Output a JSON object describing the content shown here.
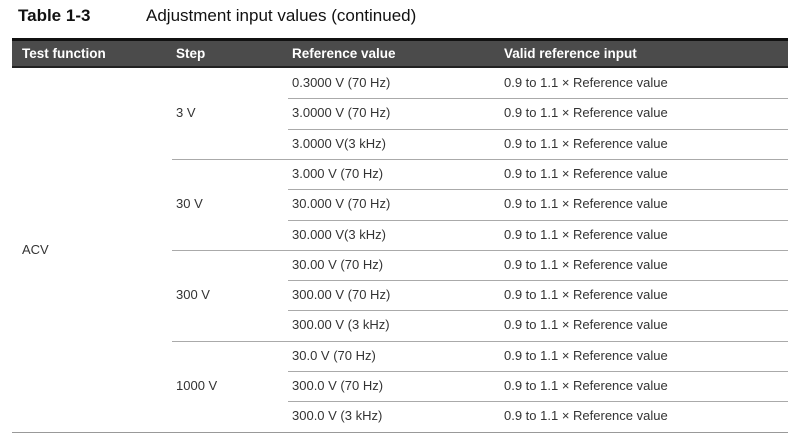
{
  "caption": {
    "number": "Table 1-3",
    "title": "Adjustment input values (continued)"
  },
  "columns": [
    "Test function",
    "Step",
    "Reference value",
    "Valid reference input"
  ],
  "function": "ACV",
  "groups": [
    {
      "step": "3 V",
      "rows": [
        {
          "ref": "0.3000 V (70 Hz)",
          "valid": "0.9 to 1.1 × Reference value"
        },
        {
          "ref": "3.0000 V (70 Hz)",
          "valid": "0.9 to 1.1 × Reference value"
        },
        {
          "ref": "3.0000 V(3 kHz)",
          "valid": "0.9 to 1.1 × Reference value"
        }
      ]
    },
    {
      "step": "30 V",
      "rows": [
        {
          "ref": "3.000 V (70 Hz)",
          "valid": "0.9 to 1.1 × Reference value"
        },
        {
          "ref": "30.000 V (70 Hz)",
          "valid": "0.9 to 1.1 × Reference value"
        },
        {
          "ref": "30.000 V(3 kHz)",
          "valid": "0.9 to 1.1 × Reference value"
        }
      ]
    },
    {
      "step": "300 V",
      "rows": [
        {
          "ref": "30.00 V (70 Hz)",
          "valid": "0.9 to 1.1 × Reference value"
        },
        {
          "ref": "300.00 V (70 Hz)",
          "valid": "0.9 to 1.1 × Reference value"
        },
        {
          "ref": "300.00 V (3 kHz)",
          "valid": "0.9 to 1.1 × Reference value"
        }
      ]
    },
    {
      "step": "1000 V",
      "rows": [
        {
          "ref": "30.0 V (70 Hz)",
          "valid": "0.9 to 1.1 × Reference value"
        },
        {
          "ref": "300.0 V (70 Hz)",
          "valid": "0.9 to 1.1 × Reference value"
        },
        {
          "ref": "300.0 V (3 kHz)",
          "valid": "0.9 to 1.1 × Reference value"
        }
      ]
    }
  ]
}
